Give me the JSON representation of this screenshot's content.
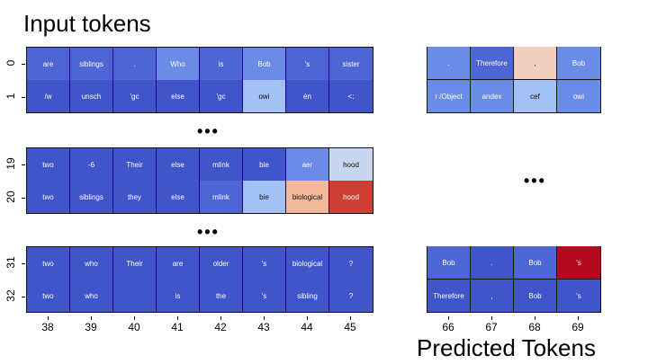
{
  "titles": {
    "input": "Input tokens",
    "predicted": "Predicted Tokens"
  },
  "ellipsis": "•••",
  "colors": {
    "dark_blue": "#3f55c9",
    "mid_blue": "#4d66d3",
    "light_blue": "#6b8ce6",
    "pale_blue": "#a3c0f7",
    "pale_gray": "#c8d6ef",
    "peach": "#f0cfbe",
    "salmon": "#f4b89a",
    "red": "#cc4033",
    "crimson": "#b4081f"
  },
  "left_x_labels": [
    "38",
    "39",
    "40",
    "41",
    "42",
    "43",
    "44",
    "45"
  ],
  "right_x_labels": [
    "66",
    "67",
    "68",
    "69"
  ],
  "groups": [
    {
      "rows": [
        {
          "label": "0",
          "left": [
            [
              "are",
              "mid_blue"
            ],
            [
              "siblings",
              "mid_blue"
            ],
            [
              ".",
              "mid_blue"
            ],
            [
              "Who",
              "light_blue"
            ],
            [
              "is",
              "mid_blue"
            ],
            [
              "Bob",
              "light_blue"
            ],
            [
              "'s",
              "mid_blue"
            ],
            [
              "sister",
              "mid_blue"
            ]
          ],
          "right": [
            [
              ".",
              "light_blue"
            ],
            [
              "Therefore",
              "mid_blue"
            ],
            [
              ",",
              "peach"
            ],
            [
              "Bob",
              "light_blue"
            ]
          ]
        },
        {
          "label": "1",
          "left": [
            [
              "/w",
              "dark_blue"
            ],
            [
              "unsch",
              "dark_blue"
            ],
            [
              "'gc",
              "dark_blue"
            ],
            [
              "else",
              "dark_blue"
            ],
            [
              "'gc",
              "dark_blue"
            ],
            [
              "owi",
              "pale_blue"
            ],
            [
              "én",
              "dark_blue"
            ],
            [
              "<:",
              "dark_blue"
            ]
          ],
          "right": [
            [
              "r  /Object",
              "light_blue"
            ],
            [
              "andex",
              "light_blue"
            ],
            [
              "cef",
              "pale_blue"
            ],
            [
              "owi",
              "light_blue"
            ]
          ]
        }
      ]
    },
    {
      "rows": [
        {
          "label": "19",
          "left": [
            [
              "two",
              "dark_blue"
            ],
            [
              "-6",
              "dark_blue"
            ],
            [
              "Their",
              "dark_blue"
            ],
            [
              "else",
              "dark_blue"
            ],
            [
              "mlink",
              "dark_blue"
            ],
            [
              "bie",
              "dark_blue"
            ],
            [
              "aer",
              "light_blue"
            ],
            [
              "hood",
              "pale_gray"
            ]
          ]
        },
        {
          "label": "20",
          "left": [
            [
              "two",
              "dark_blue"
            ],
            [
              "siblings",
              "dark_blue"
            ],
            [
              "they",
              "dark_blue"
            ],
            [
              "else",
              "dark_blue"
            ],
            [
              "mlink",
              "mid_blue"
            ],
            [
              "bie",
              "pale_blue"
            ],
            [
              "biological",
              "salmon"
            ],
            [
              "hood",
              "red"
            ]
          ]
        }
      ]
    },
    {
      "rows": [
        {
          "label": "31",
          "left": [
            [
              "two",
              "dark_blue"
            ],
            [
              "who",
              "dark_blue"
            ],
            [
              "Their",
              "dark_blue"
            ],
            [
              "are",
              "dark_blue"
            ],
            [
              "older",
              "dark_blue"
            ],
            [
              "'s",
              "dark_blue"
            ],
            [
              "biological",
              "dark_blue"
            ],
            [
              "?",
              "dark_blue"
            ]
          ],
          "right": [
            [
              "Bob",
              "mid_blue"
            ],
            [
              ".",
              "dark_blue"
            ],
            [
              "Bob",
              "mid_blue"
            ],
            [
              "'s",
              "crimson"
            ]
          ]
        },
        {
          "label": "32",
          "left": [
            [
              "two",
              "dark_blue"
            ],
            [
              "who",
              "dark_blue"
            ],
            [
              "",
              "dark_blue"
            ],
            [
              "is",
              "dark_blue"
            ],
            [
              "the",
              "dark_blue"
            ],
            [
              "'s",
              "dark_blue"
            ],
            [
              "sibling",
              "dark_blue"
            ],
            [
              "?",
              "dark_blue"
            ]
          ],
          "right": [
            [
              "Therefore",
              "dark_blue"
            ],
            [
              ",",
              "dark_blue"
            ],
            [
              "Bob",
              "dark_blue"
            ],
            [
              "'s",
              "dark_blue"
            ]
          ]
        }
      ]
    }
  ]
}
